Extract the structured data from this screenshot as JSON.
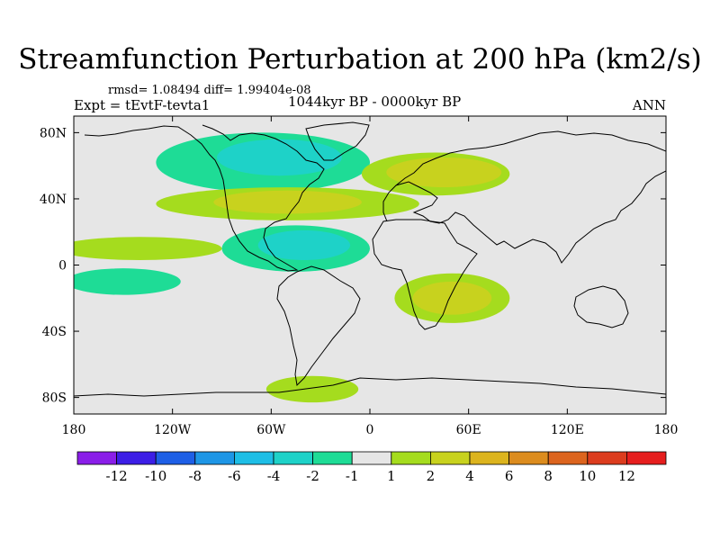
{
  "chart_data": {
    "type": "heatmap",
    "title": "Streamfunction Perturbation at 200 hPa (km2/s)",
    "stats": "rmsd= 1.08494  diff= 1.99404e-08",
    "experiment": "Expt = tEvtF-tevta1",
    "period": "1044kyr BP - 0000kyr BP",
    "season": "ANN",
    "xlim": [
      -180,
      180
    ],
    "ylim": [
      -90,
      90
    ],
    "x_ticks": [
      {
        "value": -180,
        "label": "180"
      },
      {
        "value": -120,
        "label": "120W"
      },
      {
        "value": -60,
        "label": "60W"
      },
      {
        "value": 0,
        "label": "0"
      },
      {
        "value": 60,
        "label": "60E"
      },
      {
        "value": 120,
        "label": "120E"
      },
      {
        "value": 180,
        "label": "180"
      }
    ],
    "y_ticks": [
      {
        "value": 80,
        "label": "80N"
      },
      {
        "value": 40,
        "label": "40N"
      },
      {
        "value": 0,
        "label": "0"
      },
      {
        "value": -40,
        "label": "40S"
      },
      {
        "value": -80,
        "label": "80S"
      }
    ],
    "colorbar": {
      "labels": [
        "-12",
        "-10",
        "-8",
        "-6",
        "-4",
        "-2",
        "-1",
        "1",
        "2",
        "4",
        "6",
        "8",
        "10",
        "12"
      ],
      "colors": [
        "#8a1ee8",
        "#3c1ee6",
        "#1e5fe6",
        "#1e96e6",
        "#1ebee6",
        "#1ed2c8",
        "#1edc96",
        "#e6e6e6",
        "#a5dc1e",
        "#c8d21e",
        "#dcb41e",
        "#dc8c1e",
        "#dc641e",
        "#dc3c1e",
        "#e61e1e"
      ]
    },
    "regions": [
      {
        "name": "north-atlantic-negative-outer",
        "level": "-1",
        "color": "#1edc96",
        "lon": -65,
        "lat": 62,
        "rlon": 65,
        "rlat": 18
      },
      {
        "name": "north-atlantic-negative-core",
        "level": "-2",
        "color": "#1ed2c8",
        "lon": -55,
        "lat": 65,
        "rlon": 38,
        "rlat": 11
      },
      {
        "name": "central-atlantic-negative-outer",
        "level": "-1",
        "color": "#1edc96",
        "lon": -45,
        "lat": 10,
        "rlon": 45,
        "rlat": 14
      },
      {
        "name": "central-atlantic-negative-core",
        "level": "-2",
        "color": "#1ed2c8",
        "lon": -40,
        "lat": 12,
        "rlon": 28,
        "rlat": 9
      },
      {
        "name": "north-america-positive",
        "level": "1",
        "color": "#a5dc1e",
        "lon": -140,
        "lat": 10,
        "rlon": 50,
        "rlat": 7
      },
      {
        "name": "midlatitude-atlantic-positive",
        "level": "1",
        "color": "#a5dc1e",
        "lon": -50,
        "lat": 37,
        "rlon": 80,
        "rlat": 10
      },
      {
        "name": "midlatitude-atlantic-positive-core",
        "level": "2",
        "color": "#c8d21e",
        "lon": -50,
        "lat": 38,
        "rlon": 45,
        "rlat": 7
      },
      {
        "name": "eurasia-positive",
        "level": "1",
        "color": "#a5dc1e",
        "lon": 40,
        "lat": 55,
        "rlon": 45,
        "rlat": 13
      },
      {
        "name": "eurasia-positive-core",
        "level": "2",
        "color": "#c8d21e",
        "lon": 45,
        "lat": 56,
        "rlon": 35,
        "rlat": 9
      },
      {
        "name": "south-atlantic-positive",
        "level": "1",
        "color": "#a5dc1e",
        "lon": 50,
        "lat": -20,
        "rlon": 35,
        "rlat": 15
      },
      {
        "name": "south-atlantic-positive-core",
        "level": "2",
        "color": "#c8d21e",
        "lon": 50,
        "lat": -20,
        "rlon": 24,
        "rlat": 10
      },
      {
        "name": "pacific-negative",
        "level": "-1",
        "color": "#1edc96",
        "lon": -150,
        "lat": -10,
        "rlon": 35,
        "rlat": 8
      },
      {
        "name": "antarctic-positive",
        "level": "1",
        "color": "#a5dc1e",
        "lon": -35,
        "lat": -75,
        "rlon": 28,
        "rlat": 8
      }
    ]
  }
}
